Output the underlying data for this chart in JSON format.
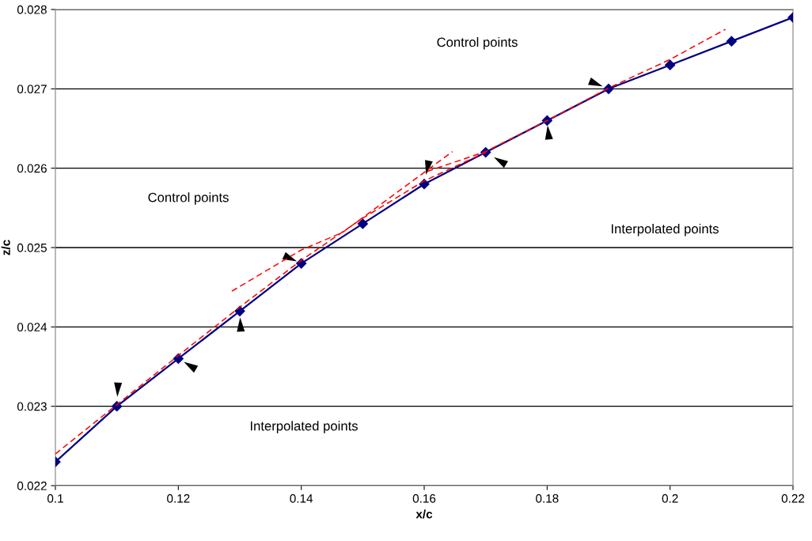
{
  "chart_data": {
    "type": "line",
    "xlabel": "x/c",
    "ylabel": "z/c",
    "xlim": [
      0.1,
      0.22
    ],
    "xticks": [
      0.1,
      0.12,
      0.14,
      0.16,
      0.18,
      0.2,
      0.22
    ],
    "ylim": [
      0.022,
      0.028
    ],
    "yticks": [
      0.022,
      0.023,
      0.024,
      0.025,
      0.026,
      0.027,
      0.028
    ],
    "grid": "y",
    "legend": false,
    "series": [
      {
        "color": "#000080",
        "marker": "diamond",
        "line_style": "solid",
        "x": [
          0.1,
          0.11,
          0.12,
          0.13,
          0.14,
          0.15,
          0.16,
          0.17,
          0.18,
          0.19,
          0.2,
          0.21,
          0.22
        ],
        "values": [
          0.0223,
          0.023,
          0.0236,
          0.0242,
          0.0248,
          0.0253,
          0.0258,
          0.0262,
          0.0266,
          0.027,
          0.0273,
          0.0276,
          0.0279
        ]
      },
      {
        "color": "#ff0000",
        "marker": "none",
        "line_style": "dashed",
        "x": [
          0.1,
          0.11,
          0.12,
          0.13,
          0.14,
          0.15,
          0.16,
          0.17
        ],
        "values": [
          0.0224,
          0.02302,
          0.02364,
          0.02425,
          0.02484,
          0.02537,
          0.02584,
          0.0262
        ]
      },
      {
        "color": "#ff0000",
        "marker": "none",
        "line_style": "dashed",
        "x": [
          0.1287,
          0.14,
          0.1467,
          0.1646
        ],
        "values": [
          0.02445,
          0.02497,
          0.02519,
          0.02621
        ]
      },
      {
        "color": "#ff0000",
        "marker": "none",
        "line_style": "dashed",
        "x": [
          0.1605,
          0.17,
          0.18,
          0.19,
          0.2,
          0.209
        ],
        "values": [
          0.02596,
          0.02621,
          0.0266,
          0.02701,
          0.02737,
          0.02775
        ]
      }
    ],
    "annotations": [
      "Control points",
      "Control points",
      "Interpolated points",
      "Interpolated points"
    ]
  }
}
